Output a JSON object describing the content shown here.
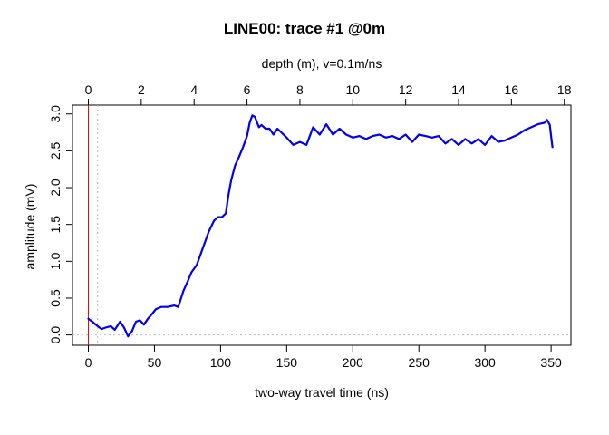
{
  "chart_data": {
    "type": "line",
    "title": "LINE00: trace #1  @0m",
    "xlabel": "two-way travel time (ns)",
    "ylabel": "amplitude (mV)",
    "top_axis_label": "depth (m),   v=0.1m/ns",
    "xlim": [
      -12,
      365
    ],
    "ylim": [
      -0.14,
      3.12
    ],
    "xticks": [
      "0",
      "50",
      "100",
      "150",
      "200",
      "250",
      "300",
      "350"
    ],
    "yticks": [
      "0.0",
      "0.5",
      "1.0",
      "1.5",
      "2.0",
      "2.5",
      "3.0"
    ],
    "top_ticks": [
      "0",
      "2",
      "4",
      "6",
      "8",
      "10",
      "12",
      "14",
      "16",
      "18"
    ],
    "vline_red_x": 0,
    "vline_dotted_x": 7,
    "hline_dotted_y": 0,
    "colors": {
      "trace": "#0000ee",
      "time_zero_line": "#ff0000",
      "reference_lines": "#bbbbbb"
    },
    "series": [
      {
        "x": [
          0,
          3,
          7,
          10,
          13,
          17,
          20,
          24,
          27,
          30,
          33,
          36,
          39,
          42,
          45,
          48,
          51,
          55,
          60,
          65,
          68,
          72,
          75,
          78,
          82,
          85,
          88,
          91,
          95,
          98,
          101,
          104,
          106,
          108,
          111,
          114,
          117,
          120,
          122,
          124,
          126,
          129,
          131,
          134,
          137,
          140,
          143,
          146,
          150,
          155,
          160,
          165,
          170,
          175,
          180,
          185,
          190,
          195,
          200,
          205,
          210,
          215,
          220,
          225,
          230,
          235,
          240,
          245,
          250,
          255,
          260,
          265,
          270,
          275,
          280,
          285,
          290,
          295,
          300,
          305,
          310,
          315,
          320,
          325,
          330,
          335,
          340,
          345,
          347,
          349,
          350,
          351
        ],
        "y": [
          0.22,
          0.18,
          0.12,
          0.08,
          0.1,
          0.12,
          0.07,
          0.18,
          0.1,
          -0.02,
          0.05,
          0.18,
          0.2,
          0.14,
          0.22,
          0.28,
          0.35,
          0.38,
          0.38,
          0.4,
          0.38,
          0.6,
          0.72,
          0.85,
          0.95,
          1.1,
          1.25,
          1.4,
          1.55,
          1.6,
          1.6,
          1.65,
          1.9,
          2.1,
          2.3,
          2.42,
          2.55,
          2.7,
          2.88,
          2.98,
          2.96,
          2.82,
          2.85,
          2.8,
          2.8,
          2.72,
          2.8,
          2.75,
          2.68,
          2.58,
          2.62,
          2.58,
          2.82,
          2.72,
          2.86,
          2.72,
          2.8,
          2.72,
          2.68,
          2.7,
          2.66,
          2.7,
          2.72,
          2.68,
          2.7,
          2.66,
          2.72,
          2.62,
          2.72,
          2.7,
          2.68,
          2.7,
          2.6,
          2.66,
          2.58,
          2.66,
          2.6,
          2.66,
          2.58,
          2.7,
          2.62,
          2.64,
          2.68,
          2.72,
          2.78,
          2.82,
          2.86,
          2.88,
          2.92,
          2.85,
          2.7,
          2.55
        ]
      }
    ]
  }
}
